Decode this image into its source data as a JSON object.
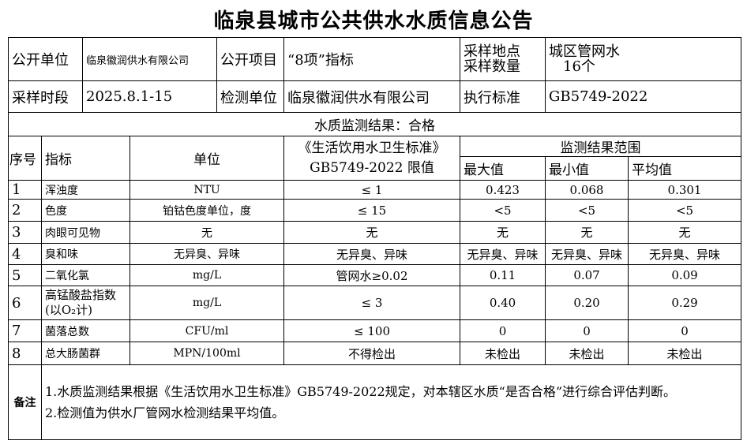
{
  "title": "临泉县城市公共供水水质信息公告",
  "info": {
    "publisher_label": "公开单位",
    "publisher": "临泉徽润供水有限公司",
    "item_label": "公开项目",
    "item": "“8项”指标",
    "location_label": "采样地点",
    "count_label": "采样数量",
    "location": "城区管网水",
    "count": "16个",
    "period_label": "采样时段",
    "period": "2025.8.1-15",
    "tester_label": "检测单位",
    "tester": "临泉徽润供水有限公司",
    "standard_label": "执行标准",
    "standard": "GB5749-2022"
  },
  "result": "水质监测结果：合格",
  "headers": {
    "no": "序号",
    "indicator": "指标",
    "unit": "单位",
    "limit_line1": "《生活饮用水卫生标准》",
    "limit_line2": "GB5749-2022 限值",
    "range": "监测结果范围",
    "max": "最大值",
    "min": "最小值",
    "avg": "平均值"
  },
  "rows": [
    {
      "no": "1",
      "indicator": "浑浊度",
      "unit": "NTU",
      "limit": "≤ 1",
      "max": "0.423",
      "min": "0.068",
      "avg": "0.301"
    },
    {
      "no": "2",
      "indicator": "色度",
      "unit": "铂钴色度单位，度",
      "limit": "≤ 15",
      "max": "<5",
      "min": "<5",
      "avg": "<5"
    },
    {
      "no": "3",
      "indicator": "肉眼可见物",
      "unit": "无",
      "limit": "无",
      "max": "无",
      "min": "无",
      "avg": "无"
    },
    {
      "no": "4",
      "indicator": "臭和味",
      "unit": "无异臭、异味",
      "limit": "无异臭、异味",
      "max": "无异臭、异味",
      "min": "无异臭、异味",
      "avg": "无异臭、异味"
    },
    {
      "no": "5",
      "indicator": "二氧化氯",
      "unit": "mg/L",
      "limit": "管网水≥0.02",
      "max": "0.11",
      "min": "0.07",
      "avg": "0.09"
    },
    {
      "no": "6",
      "indicator": "高锰酸盐指数(以O₂计)",
      "unit": "mg/L",
      "limit": "≤ 3",
      "max": "0.40",
      "min": "0.20",
      "avg": "0.29"
    },
    {
      "no": "7",
      "indicator": "菌落总数",
      "unit": "CFU/ml",
      "limit": "≤ 100",
      "max": "0",
      "min": "0",
      "avg": "0"
    },
    {
      "no": "8",
      "indicator": "总大肠菌群",
      "unit": "MPN/100ml",
      "limit": "不得检出",
      "max": "未检出",
      "min": "未检出",
      "avg": "未检出"
    }
  ],
  "notes": {
    "label": "备注",
    "line1": "1.水质监测结果根据《生活饮用水卫生标准》GB5749-2022规定，对本辖区水质“是否合格”进行综合评估判断。",
    "line2": "2.检测值为供水厂管网水检测结果平均值。"
  }
}
